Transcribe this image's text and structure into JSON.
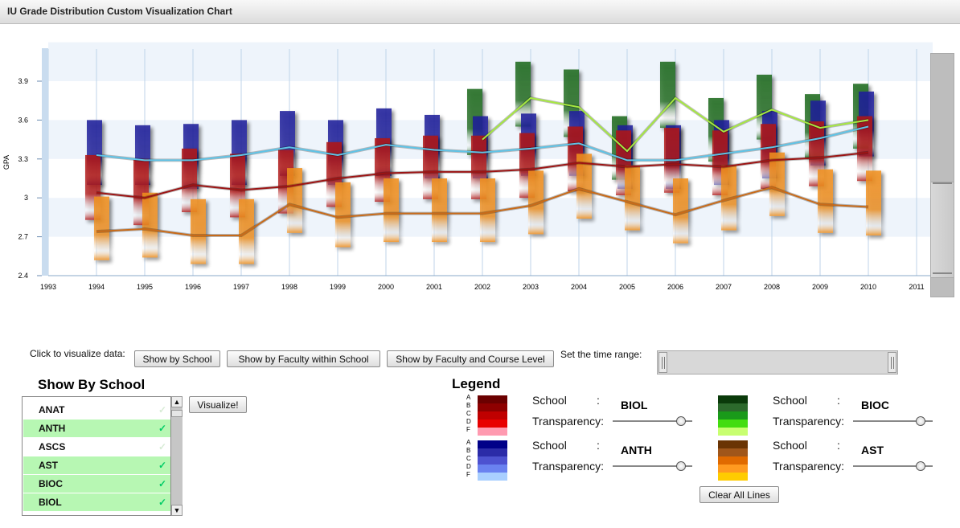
{
  "window": {
    "title": "IU Grade Distribution Custom Visualization Chart"
  },
  "chart_data": {
    "type": "line",
    "ylabel": "GPA",
    "xlabel": "",
    "ylim": [
      2.4,
      4.1
    ],
    "xlim": [
      1993,
      2011
    ],
    "y_ticks": [
      "2.4",
      "2.7",
      "3",
      "3.3",
      "3.6",
      "3.9"
    ],
    "x_ticks": [
      "1993",
      "1994",
      "1995",
      "1996",
      "1997",
      "1998",
      "1999",
      "2000",
      "2001",
      "2002",
      "2003",
      "2004",
      "2005",
      "2006",
      "2007",
      "2008",
      "2009",
      "2010",
      "2011"
    ],
    "series": [
      {
        "school": "ANTH",
        "color": "#1f1e9a",
        "line_color": "#5fc3e6",
        "x": [
          1994,
          1995,
          1996,
          1997,
          1998,
          1999,
          2000,
          2001,
          2002,
          2003,
          2004,
          2005,
          2006,
          2007,
          2008,
          2009,
          2010
        ],
        "mean": [
          3.33,
          3.29,
          3.29,
          3.33,
          3.39,
          3.33,
          3.41,
          3.37,
          3.35,
          3.38,
          3.42,
          3.29,
          3.29,
          3.34,
          3.39,
          3.46,
          3.55
        ],
        "low": [
          3.1,
          3.1,
          3.07,
          3.1,
          3.17,
          3.1,
          3.17,
          3.15,
          3.15,
          3.17,
          3.17,
          3.07,
          3.07,
          3.1,
          3.15,
          3.25,
          3.32
        ],
        "high": [
          3.6,
          3.56,
          3.57,
          3.6,
          3.67,
          3.6,
          3.69,
          3.64,
          3.63,
          3.65,
          3.67,
          3.56,
          3.56,
          3.6,
          3.67,
          3.75,
          3.82
        ]
      },
      {
        "school": "AST",
        "color": "#ef8e1c",
        "line_color": "#c86a18",
        "x": [
          1994,
          1995,
          1996,
          1997,
          1998,
          1999,
          2000,
          2001,
          2002,
          2003,
          2004,
          2005,
          2006,
          2007,
          2008,
          2009,
          2010
        ],
        "mean": [
          2.74,
          2.76,
          2.71,
          2.71,
          2.95,
          2.85,
          2.88,
          2.88,
          2.88,
          2.94,
          3.07,
          2.97,
          2.87,
          2.98,
          3.08,
          2.95,
          2.93
        ],
        "low": [
          2.52,
          2.54,
          2.49,
          2.49,
          2.73,
          2.62,
          2.66,
          2.66,
          2.66,
          2.72,
          2.84,
          2.75,
          2.65,
          2.75,
          2.86,
          2.73,
          2.71
        ],
        "high": [
          3.01,
          3.04,
          2.99,
          2.99,
          3.23,
          3.12,
          3.15,
          3.15,
          3.15,
          3.21,
          3.34,
          3.25,
          3.15,
          3.25,
          3.35,
          3.22,
          3.21
        ]
      },
      {
        "school": "BIOL",
        "color": "#b01818",
        "line_color": "#9c1414",
        "x": [
          1994,
          1995,
          1996,
          1997,
          1998,
          1999,
          2000,
          2001,
          2002,
          2003,
          2004,
          2005,
          2006,
          2007,
          2008,
          2009,
          2010
        ],
        "mean": [
          3.04,
          3.0,
          3.1,
          3.06,
          3.09,
          3.15,
          3.19,
          3.2,
          3.2,
          3.22,
          3.27,
          3.24,
          3.26,
          3.24,
          3.29,
          3.31,
          3.35
        ],
        "low": [
          2.83,
          2.79,
          2.89,
          2.85,
          2.88,
          2.93,
          2.97,
          2.99,
          2.99,
          3.0,
          3.05,
          3.02,
          3.04,
          3.02,
          3.07,
          3.09,
          3.13
        ],
        "high": [
          3.33,
          3.3,
          3.38,
          3.34,
          3.37,
          3.43,
          3.46,
          3.48,
          3.48,
          3.5,
          3.55,
          3.52,
          3.54,
          3.52,
          3.57,
          3.59,
          3.63
        ]
      },
      {
        "school": "BIOC",
        "color": "#1d6a1d",
        "line_color": "#a6e840",
        "x": [
          2002,
          2003,
          2004,
          2005,
          2006,
          2007,
          2008,
          2009,
          2010
        ],
        "mean": [
          3.45,
          3.77,
          3.7,
          3.36,
          3.77,
          3.51,
          3.68,
          3.54,
          3.6
        ],
        "low": [
          3.33,
          3.55,
          3.47,
          3.14,
          3.54,
          3.28,
          3.45,
          3.31,
          3.38
        ],
        "high": [
          3.84,
          4.05,
          3.99,
          3.63,
          4.05,
          3.77,
          3.95,
          3.8,
          3.88
        ]
      }
    ]
  },
  "controls": {
    "click_label": "Click to visualize data:",
    "btn_school": "Show by School",
    "btn_faculty": "Show by Faculty within School",
    "btn_course": "Show by Faculty and Course Level",
    "time_range_label": "Set the time range:"
  },
  "school_list": {
    "title": "Show By School",
    "items": [
      {
        "label": "ANAT",
        "selected": false
      },
      {
        "label": "ANTH",
        "selected": true
      },
      {
        "label": "ASCS",
        "selected": false
      },
      {
        "label": "AST",
        "selected": true
      },
      {
        "label": "BIOC",
        "selected": true
      },
      {
        "label": "BIOL",
        "selected": true
      }
    ],
    "check_glyph": "✓",
    "visualize_label": "Visualize!"
  },
  "legend": {
    "title": "Legend",
    "grades": [
      "A",
      "B",
      "C",
      "D",
      "F"
    ],
    "school_label": "School",
    "colon": ":",
    "transparency_label": "Transparency:",
    "entries": [
      {
        "school": "BIOL",
        "swatches": [
          "#6b0000",
          "#8e0000",
          "#c00000",
          "#e80000",
          "#ff9ab0"
        ],
        "transparency": 0.9
      },
      {
        "school": "BIOC",
        "swatches": [
          "#0a3a0a",
          "#2c6a2c",
          "#1a9a1a",
          "#44dd10",
          "#c8ff70"
        ],
        "transparency": 0.9
      },
      {
        "school": "ANTH",
        "swatches": [
          "#000088",
          "#2b2ba8",
          "#4d52d0",
          "#6a82f0",
          "#a9cfff"
        ],
        "transparency": 0.9
      },
      {
        "school": "AST",
        "swatches": [
          "#6a3404",
          "#a0561a",
          "#e06a00",
          "#ff9a20",
          "#ffcc00"
        ],
        "transparency": 0.9
      }
    ],
    "clear_label": "Clear All Lines"
  }
}
